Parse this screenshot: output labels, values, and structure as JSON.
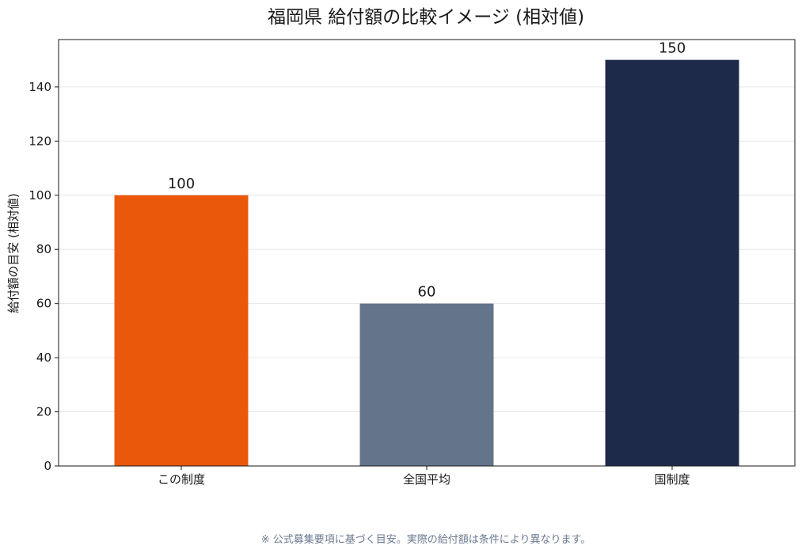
{
  "chart_data": {
    "type": "bar",
    "title": "福岡県 給付額の比較イメージ (相対値)",
    "xlabel": "",
    "ylabel": "給付額の目安 (相対値)",
    "categories": [
      "この制度",
      "全国平均",
      "国制度"
    ],
    "values": [
      100,
      60,
      150
    ],
    "colors": [
      "#ea580c",
      "#64748b",
      "#1e2a4a"
    ],
    "data_labels": [
      "100",
      "60",
      "150"
    ],
    "ylim": [
      0,
      157.5
    ],
    "yticks": [
      0,
      20,
      40,
      60,
      80,
      100,
      120,
      140
    ],
    "ytick_labels": [
      "0",
      "20",
      "40",
      "60",
      "80",
      "100",
      "120",
      "140"
    ],
    "grid": true,
    "legend": "none"
  },
  "footnote": "※ 公式募集要項に基づく目安。実際の給付額は条件により異なります。"
}
